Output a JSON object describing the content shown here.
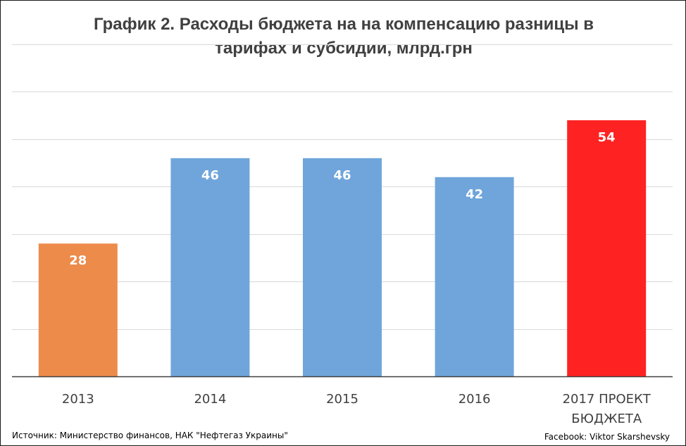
{
  "chart_data": {
    "type": "bar",
    "title_lines": [
      "График 2. Расходы бюджета на на компенсацию разницы в",
      "тарифах и субсидии, млрд.грн"
    ],
    "categories": [
      [
        "2013"
      ],
      [
        "2014"
      ],
      [
        "2015"
      ],
      [
        "2016"
      ],
      [
        "2017 ПРОЕКТ",
        "БЮДЖЕТА"
      ]
    ],
    "values": [
      28,
      46,
      46,
      42,
      54
    ],
    "data_labels": [
      "28",
      "46",
      "46",
      "42",
      "54"
    ],
    "bar_colors": [
      "#ED8B4B",
      "#6FA5DA",
      "#6FA5DA",
      "#6FA5DA",
      "#FF2222"
    ],
    "ylim": [
      0,
      70
    ],
    "gridline_step": 10,
    "grid": true,
    "legend": "none"
  },
  "footer": {
    "source": "Источник: Министерство финансов, НАК \"Нефтегаз Украины\"",
    "credit": "Facebook: Viktor Skarshevsky"
  },
  "colors": {
    "title": "#404040",
    "gridline": "#d9d9d9",
    "axis": "#404040"
  }
}
